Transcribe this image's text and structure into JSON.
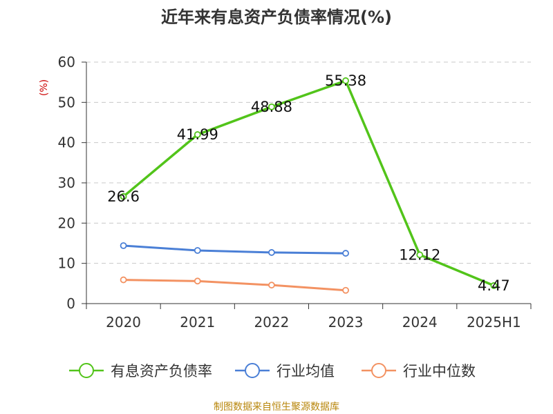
{
  "chart_data": {
    "type": "line",
    "title": "近年来有息资产负债率情况(%)",
    "y_unit": "(%)",
    "categories": [
      "2020",
      "2021",
      "2022",
      "2023",
      "2024",
      "2025H1"
    ],
    "ylim": [
      0,
      60
    ],
    "yticks": [
      "0",
      "10",
      "20",
      "30",
      "40",
      "50",
      "60"
    ],
    "grid": true,
    "legend_position": "bottom",
    "series": [
      {
        "name": "有息资产负债率",
        "color": "#52c41a",
        "values": [
          26.6,
          41.99,
          48.88,
          55.38,
          12.12,
          4.47
        ],
        "labels": [
          "26.6",
          "41.99",
          "48.88",
          "55.38",
          "12.12",
          "4.47"
        ]
      },
      {
        "name": "行业均值",
        "color": "#4a7fd6",
        "values": [
          14.4,
          13.2,
          12.7,
          12.5,
          null,
          null
        ]
      },
      {
        "name": "行业中位数",
        "color": "#f39262",
        "values": [
          5.9,
          5.6,
          4.6,
          3.3,
          null,
          null
        ]
      }
    ],
    "source": "制图数据来自恒生聚源数据库"
  }
}
